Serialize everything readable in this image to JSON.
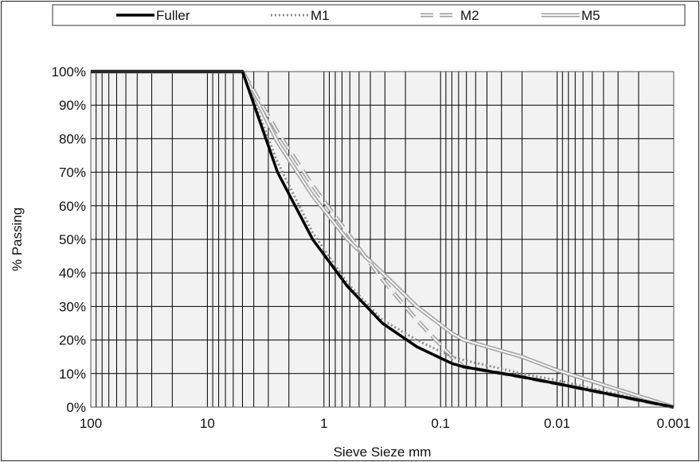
{
  "chart_data": {
    "type": "line",
    "title": "",
    "xlabel": "Sieve Sieze mm",
    "ylabel": "% Passing",
    "x_scale": "log",
    "x_reversed": true,
    "xlim": [
      100,
      0.001
    ],
    "ylim": [
      0,
      100
    ],
    "x_ticks": [
      100,
      10,
      1,
      0.1,
      0.01,
      0.001
    ],
    "x_tick_labels": [
      "100",
      "10",
      "1",
      "0.1",
      "0.01",
      "0.001"
    ],
    "y_ticks": [
      0,
      10,
      20,
      30,
      40,
      50,
      60,
      70,
      80,
      90,
      100
    ],
    "y_tick_labels": [
      "0%",
      "10%",
      "20%",
      "30%",
      "40%",
      "50%",
      "60%",
      "70%",
      "80%",
      "90%",
      "100%"
    ],
    "grid": true,
    "legend_position": "top",
    "series": [
      {
        "name": "Fuller",
        "color": "#000000",
        "style": "solid",
        "x": [
          100,
          5,
          2.5,
          1.25,
          0.63,
          0.315,
          0.16,
          0.08,
          0.063,
          0.02,
          0.01,
          0.001
        ],
        "y": [
          100,
          100,
          70,
          50,
          36,
          25,
          18,
          13,
          12,
          9,
          7,
          0
        ]
      },
      {
        "name": "M1",
        "color": "#8c8c8c",
        "style": "dotted",
        "x": [
          100,
          5,
          2.5,
          1.25,
          0.63,
          0.315,
          0.16,
          0.08,
          0.063,
          0.02,
          0.01,
          0.001
        ],
        "y": [
          100,
          100,
          73,
          52,
          37,
          26,
          20,
          15,
          14,
          10,
          8,
          0
        ]
      },
      {
        "name": "M2",
        "color": "#a0a0a0",
        "style": "dashed-double",
        "x": [
          100,
          5,
          2.5,
          1.25,
          0.63,
          0.315,
          0.16,
          0.08,
          0.063,
          0.02,
          0.01,
          0.001
        ],
        "y": [
          100,
          100,
          82,
          66,
          52,
          38,
          26,
          15,
          12,
          9,
          7,
          0
        ]
      },
      {
        "name": "M5",
        "color": "#a0a0a0",
        "style": "double",
        "x": [
          100,
          5,
          2.5,
          1.25,
          0.63,
          0.315,
          0.16,
          0.08,
          0.063,
          0.02,
          0.01,
          0.001
        ],
        "y": [
          100,
          100,
          79,
          63,
          50,
          40,
          30,
          22,
          20,
          15,
          11,
          0
        ]
      }
    ]
  }
}
